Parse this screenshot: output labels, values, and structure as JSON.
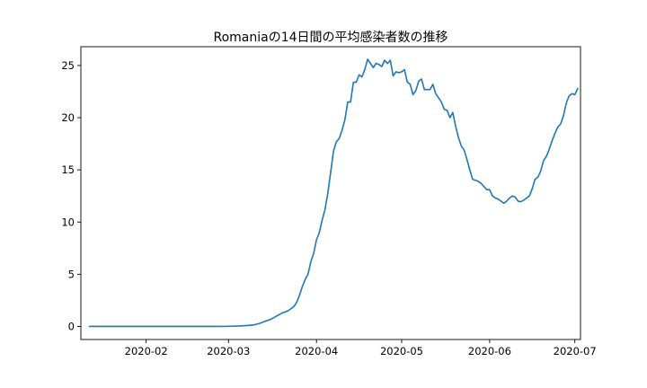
{
  "chart_data": {
    "type": "line",
    "title": "Romaniaの14日間の平均感染者数の推移",
    "xlabel": "",
    "ylabel": "",
    "x_range": [
      "2020-01-09",
      "2020-07-03"
    ],
    "ylim": [
      -1.25,
      26.8
    ],
    "grid": false,
    "x_ticks": [
      "2020-02",
      "2020-03",
      "2020-04",
      "2020-05",
      "2020-06",
      "2020-07"
    ],
    "y_ticks": [
      0,
      5,
      10,
      15,
      20,
      25
    ],
    "series": [
      {
        "color": "#1f77b4",
        "points": [
          [
            "2020-01-12",
            0.0
          ],
          [
            "2020-02-01",
            0.0
          ],
          [
            "2020-02-20",
            0.0
          ],
          [
            "2020-02-28",
            0.0
          ],
          [
            "2020-03-02",
            0.02
          ],
          [
            "2020-03-05",
            0.05
          ],
          [
            "2020-03-08",
            0.1
          ],
          [
            "2020-03-10",
            0.15
          ],
          [
            "2020-03-12",
            0.3
          ],
          [
            "2020-03-14",
            0.5
          ],
          [
            "2020-03-16",
            0.7
          ],
          [
            "2020-03-18",
            1.0
          ],
          [
            "2020-03-20",
            1.3
          ],
          [
            "2020-03-22",
            1.5
          ],
          [
            "2020-03-24",
            1.9
          ],
          [
            "2020-03-25",
            2.3
          ],
          [
            "2020-03-26",
            3.0
          ],
          [
            "2020-03-27",
            3.8
          ],
          [
            "2020-03-28",
            4.5
          ],
          [
            "2020-03-29",
            5.0
          ],
          [
            "2020-03-30",
            6.2
          ],
          [
            "2020-03-31",
            7.0
          ],
          [
            "2020-04-01",
            8.3
          ],
          [
            "2020-04-02",
            9.0
          ],
          [
            "2020-04-03",
            10.2
          ],
          [
            "2020-04-04",
            11.2
          ],
          [
            "2020-04-05",
            12.8
          ],
          [
            "2020-04-06",
            14.8
          ],
          [
            "2020-04-07",
            16.8
          ],
          [
            "2020-04-08",
            17.7
          ],
          [
            "2020-04-09",
            18.0
          ],
          [
            "2020-04-10",
            18.8
          ],
          [
            "2020-04-11",
            19.8
          ],
          [
            "2020-04-12",
            21.5
          ],
          [
            "2020-04-13",
            21.5
          ],
          [
            "2020-04-14",
            23.4
          ],
          [
            "2020-04-15",
            23.4
          ],
          [
            "2020-04-16",
            24.1
          ],
          [
            "2020-04-17",
            23.9
          ],
          [
            "2020-04-18",
            24.6
          ],
          [
            "2020-04-19",
            25.6
          ],
          [
            "2020-04-20",
            25.2
          ],
          [
            "2020-04-21",
            24.8
          ],
          [
            "2020-04-22",
            25.2
          ],
          [
            "2020-04-23",
            25.1
          ],
          [
            "2020-04-24",
            24.9
          ],
          [
            "2020-04-25",
            25.5
          ],
          [
            "2020-04-26",
            25.2
          ],
          [
            "2020-04-27",
            25.5
          ],
          [
            "2020-04-28",
            24.0
          ],
          [
            "2020-04-29",
            24.4
          ],
          [
            "2020-04-30",
            24.3
          ],
          [
            "2020-05-01",
            24.4
          ],
          [
            "2020-05-02",
            24.6
          ],
          [
            "2020-05-03",
            23.4
          ],
          [
            "2020-05-04",
            23.2
          ],
          [
            "2020-05-05",
            22.2
          ],
          [
            "2020-05-06",
            22.6
          ],
          [
            "2020-05-07",
            23.5
          ],
          [
            "2020-05-08",
            23.7
          ],
          [
            "2020-05-09",
            22.7
          ],
          [
            "2020-05-10",
            22.7
          ],
          [
            "2020-05-11",
            22.7
          ],
          [
            "2020-05-12",
            23.2
          ],
          [
            "2020-05-13",
            22.3
          ],
          [
            "2020-05-14",
            21.9
          ],
          [
            "2020-05-15",
            21.5
          ],
          [
            "2020-05-16",
            20.8
          ],
          [
            "2020-05-17",
            20.7
          ],
          [
            "2020-05-18",
            20.0
          ],
          [
            "2020-05-19",
            20.5
          ],
          [
            "2020-05-20",
            19.2
          ],
          [
            "2020-05-21",
            18.1
          ],
          [
            "2020-05-22",
            17.3
          ],
          [
            "2020-05-23",
            16.9
          ],
          [
            "2020-05-24",
            16.0
          ],
          [
            "2020-05-25",
            15.0
          ],
          [
            "2020-05-26",
            14.1
          ],
          [
            "2020-05-27",
            14.0
          ],
          [
            "2020-05-28",
            13.9
          ],
          [
            "2020-05-29",
            13.7
          ],
          [
            "2020-05-30",
            13.4
          ],
          [
            "2020-05-31",
            13.1
          ],
          [
            "2020-06-01",
            13.1
          ],
          [
            "2020-06-02",
            12.5
          ],
          [
            "2020-06-03",
            12.3
          ],
          [
            "2020-06-04",
            12.2
          ],
          [
            "2020-06-05",
            12.0
          ],
          [
            "2020-06-06",
            11.8
          ],
          [
            "2020-06-07",
            12.0
          ],
          [
            "2020-06-08",
            12.3
          ],
          [
            "2020-06-09",
            12.5
          ],
          [
            "2020-06-10",
            12.4
          ],
          [
            "2020-06-11",
            12.0
          ],
          [
            "2020-06-12",
            11.95
          ],
          [
            "2020-06-13",
            12.1
          ],
          [
            "2020-06-14",
            12.3
          ],
          [
            "2020-06-15",
            12.5
          ],
          [
            "2020-06-16",
            13.2
          ],
          [
            "2020-06-17",
            14.1
          ],
          [
            "2020-06-18",
            14.3
          ],
          [
            "2020-06-19",
            14.9
          ],
          [
            "2020-06-20",
            15.9
          ],
          [
            "2020-06-21",
            16.3
          ],
          [
            "2020-06-22",
            17.0
          ],
          [
            "2020-06-23",
            17.8
          ],
          [
            "2020-06-24",
            18.5
          ],
          [
            "2020-06-25",
            19.1
          ],
          [
            "2020-06-26",
            19.4
          ],
          [
            "2020-06-27",
            20.2
          ],
          [
            "2020-06-28",
            21.4
          ],
          [
            "2020-06-29",
            22.1
          ],
          [
            "2020-06-30",
            22.3
          ],
          [
            "2020-07-01",
            22.2
          ],
          [
            "2020-07-02",
            22.8
          ]
        ]
      }
    ]
  }
}
